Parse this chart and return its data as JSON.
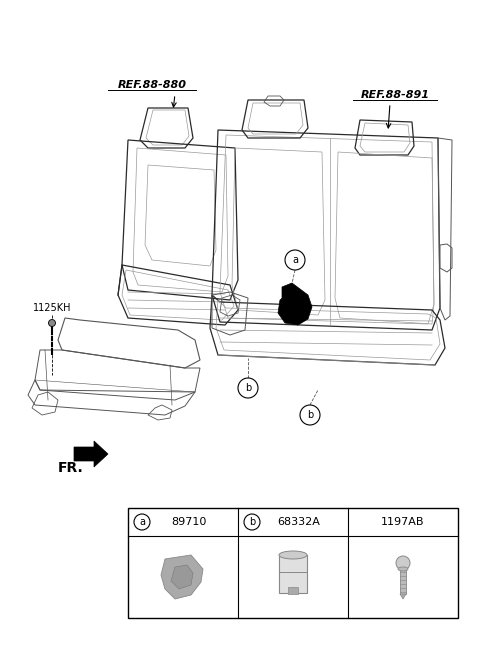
{
  "background_color": "#ffffff",
  "ref1_text": "REF.88-880",
  "ref2_text": "REF.88-891",
  "side_label_text": "1125KH",
  "fr_text": "FR.",
  "callout_a_label": "a",
  "callout_b_label": "b",
  "part_rows": [
    {
      "circle": true,
      "letter": "a",
      "part_num": "89710"
    },
    {
      "circle": true,
      "letter": "b",
      "part_num": "68332A"
    },
    {
      "circle": false,
      "letter": "",
      "part_num": "1197AB"
    }
  ],
  "line_color": "#2a2a2a",
  "detail_color": "#555555",
  "light_color": "#999999",
  "black": "#000000",
  "white": "#ffffff"
}
